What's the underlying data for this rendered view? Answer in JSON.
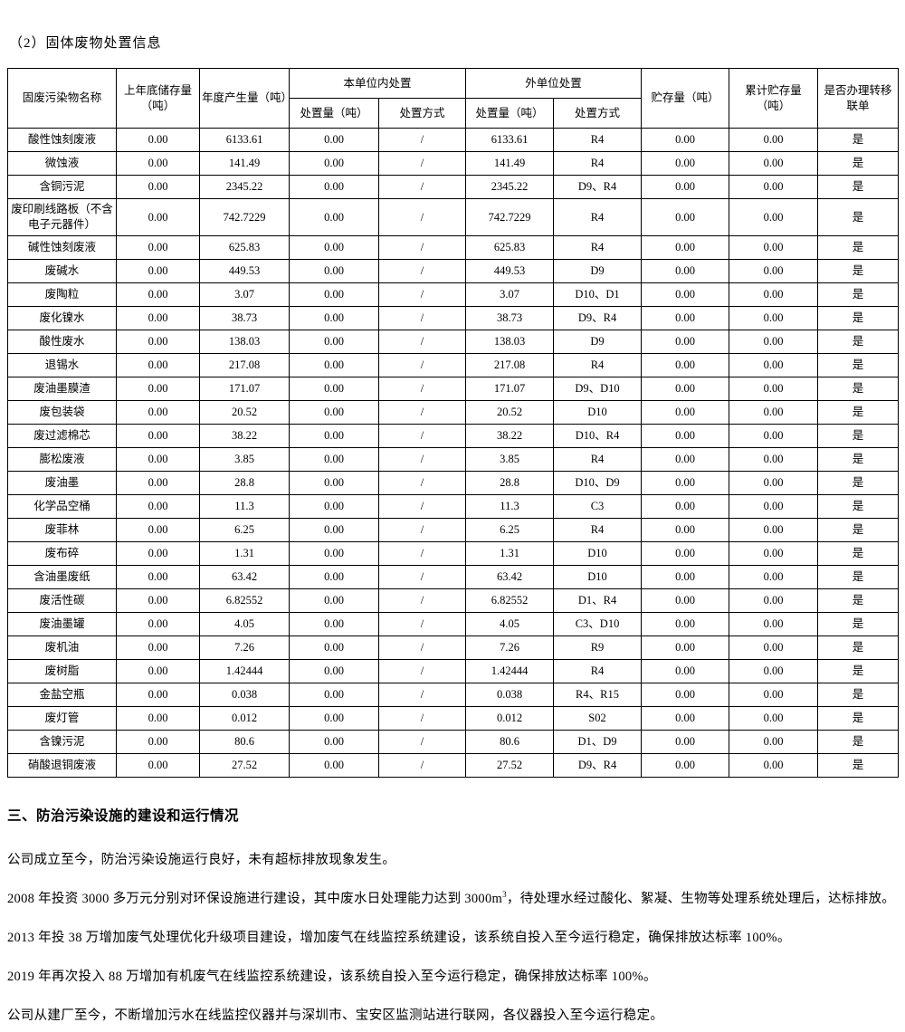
{
  "page": {
    "title": "（2）固体废物处置信息",
    "section_heading": "三、防治污染设施的建设和运行情况",
    "paragraphs": [
      {
        "text": "公司成立至今，防治污染设施运行良好，未有超标排放现象发生。"
      },
      {
        "pre": "2008 年投资 3000 多万元分别对环保设施进行建设，其中废水日处理能力达到 3000m",
        "sup": "3",
        "post": "，待处理水经过酸化、絮凝、生物等处理系统处理后，达标排放。"
      },
      {
        "text": "2013 年投 38 万增加废气处理优化升级项目建设，增加废气在线监控系统建设，该系统自投入至今运行稳定，确保排放达标率 100%。"
      },
      {
        "text": "2019 年再次投入 88 万增加有机废气在线监控系统建设，该系统自投入至今运行稳定，确保排放达标率 100%。"
      },
      {
        "text": "公司从建厂至今，不断增加污水在线监控仪器并与深圳市、宝安区监测站进行联网，各仪器投入至今运行稳定。"
      }
    ]
  },
  "table": {
    "header": {
      "name": "固废污染物名称",
      "prev_storage": "上年底储存量（吨）",
      "annual_output": "年度产生量（吨）",
      "internal_group": "本单位内处置",
      "external_group": "外单位处置",
      "amount": "处置量（吨）",
      "method": "处置方式",
      "storage": "贮存量（吨）",
      "cumulative": "累计贮存量（吨）",
      "transfer": "是否办理转移联单"
    },
    "column_keys": [
      "name",
      "prev-storage",
      "annual-output",
      "internal-amount",
      "internal-method",
      "external-amount",
      "external-method",
      "storage",
      "cumulative-storage",
      "transfer"
    ],
    "rows": [
      [
        "酸性蚀刻废液",
        "0.00",
        "6133.61",
        "0.00",
        "/",
        "6133.61",
        "R4",
        "0.00",
        "0.00",
        "是"
      ],
      [
        "微蚀液",
        "0.00",
        "141.49",
        "0.00",
        "/",
        "141.49",
        "R4",
        "0.00",
        "0.00",
        "是"
      ],
      [
        "含铜污泥",
        "0.00",
        "2345.22",
        "0.00",
        "/",
        "2345.22",
        "D9、R4",
        "0.00",
        "0.00",
        "是"
      ],
      [
        "废印刷线路板（不含电子元器件）",
        "0.00",
        "742.7229",
        "0.00",
        "/",
        "742.7229",
        "R4",
        "0.00",
        "0.00",
        "是"
      ],
      [
        "碱性蚀刻废液",
        "0.00",
        "625.83",
        "0.00",
        "/",
        "625.83",
        "R4",
        "0.00",
        "0.00",
        "是"
      ],
      [
        "废碱水",
        "0.00",
        "449.53",
        "0.00",
        "/",
        "449.53",
        "D9",
        "0.00",
        "0.00",
        "是"
      ],
      [
        "废陶粒",
        "0.00",
        "3.07",
        "0.00",
        "/",
        "3.07",
        "D10、D1",
        "0.00",
        "0.00",
        "是"
      ],
      [
        "废化镍水",
        "0.00",
        "38.73",
        "0.00",
        "/",
        "38.73",
        "D9、R4",
        "0.00",
        "0.00",
        "是"
      ],
      [
        "酸性废水",
        "0.00",
        "138.03",
        "0.00",
        "/",
        "138.03",
        "D9",
        "0.00",
        "0.00",
        "是"
      ],
      [
        "退锡水",
        "0.00",
        "217.08",
        "0.00",
        "/",
        "217.08",
        "R4",
        "0.00",
        "0.00",
        "是"
      ],
      [
        "废油墨膜渣",
        "0.00",
        "171.07",
        "0.00",
        "/",
        "171.07",
        "D9、D10",
        "0.00",
        "0.00",
        "是"
      ],
      [
        "废包装袋",
        "0.00",
        "20.52",
        "0.00",
        "/",
        "20.52",
        "D10",
        "0.00",
        "0.00",
        "是"
      ],
      [
        "废过滤棉芯",
        "0.00",
        "38.22",
        "0.00",
        "/",
        "38.22",
        "D10、R4",
        "0.00",
        "0.00",
        "是"
      ],
      [
        "膨松废液",
        "0.00",
        "3.85",
        "0.00",
        "/",
        "3.85",
        "R4",
        "0.00",
        "0.00",
        "是"
      ],
      [
        "废油墨",
        "0.00",
        "28.8",
        "0.00",
        "/",
        "28.8",
        "D10、D9",
        "0.00",
        "0.00",
        "是"
      ],
      [
        "化学品空桶",
        "0.00",
        "11.3",
        "0.00",
        "/",
        "11.3",
        "C3",
        "0.00",
        "0.00",
        "是"
      ],
      [
        "废菲林",
        "0.00",
        "6.25",
        "0.00",
        "/",
        "6.25",
        "R4",
        "0.00",
        "0.00",
        "是"
      ],
      [
        "废布碎",
        "0.00",
        "1.31",
        "0.00",
        "/",
        "1.31",
        "D10",
        "0.00",
        "0.00",
        "是"
      ],
      [
        "含油墨废纸",
        "0.00",
        "63.42",
        "0.00",
        "/",
        "63.42",
        "D10",
        "0.00",
        "0.00",
        "是"
      ],
      [
        "废活性碳",
        "0.00",
        "6.82552",
        "0.00",
        "/",
        "6.82552",
        "D1、R4",
        "0.00",
        "0.00",
        "是"
      ],
      [
        "废油墨罐",
        "0.00",
        "4.05",
        "0.00",
        "/",
        "4.05",
        "C3、D10",
        "0.00",
        "0.00",
        "是"
      ],
      [
        "废机油",
        "0.00",
        "7.26",
        "0.00",
        "/",
        "7.26",
        "R9",
        "0.00",
        "0.00",
        "是"
      ],
      [
        "废树脂",
        "0.00",
        "1.42444",
        "0.00",
        "/",
        "1.42444",
        "R4",
        "0.00",
        "0.00",
        "是"
      ],
      [
        "金盐空瓶",
        "0.00",
        "0.038",
        "0.00",
        "/",
        "0.038",
        "R4、R15",
        "0.00",
        "0.00",
        "是"
      ],
      [
        "废灯管",
        "0.00",
        "0.012",
        "0.00",
        "/",
        "0.012",
        "S02",
        "0.00",
        "0.00",
        "是"
      ],
      [
        "含镍污泥",
        "0.00",
        "80.6",
        "0.00",
        "/",
        "80.6",
        "D1、D9",
        "0.00",
        "0.00",
        "是"
      ],
      [
        "硝酸退铜废液",
        "0.00",
        "27.52",
        "0.00",
        "/",
        "27.52",
        "D9、R4",
        "0.00",
        "0.00",
        "是"
      ]
    ]
  }
}
